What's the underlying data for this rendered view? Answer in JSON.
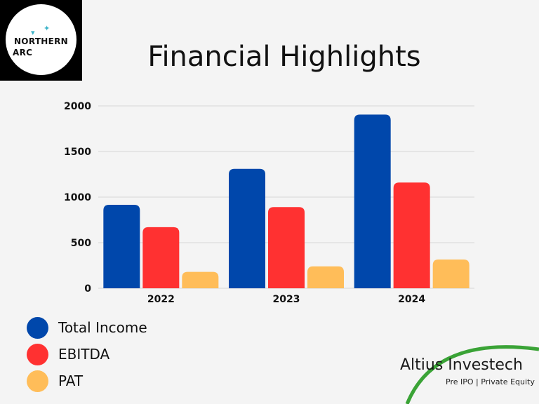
{
  "logo": {
    "line1": "NORTHERN",
    "line2": "ARC"
  },
  "title": "Financial Highlights",
  "brand": {
    "name": "Altius Investech",
    "tagline": "Pre IPO | Private Equity"
  },
  "colors": {
    "total_income": "#0047ab",
    "ebitda": "#ff3131",
    "pat": "#ffbd59",
    "brand_arc": "#3aa336"
  },
  "chart_data": {
    "type": "bar",
    "title": "Financial Highlights",
    "xlabel": "",
    "ylabel": "",
    "categories": [
      "2022",
      "2023",
      "2024"
    ],
    "series": [
      {
        "name": "Total Income",
        "color": "#0047ab",
        "values": [
          915,
          1310,
          1905
        ]
      },
      {
        "name": "EBITDA",
        "color": "#ff3131",
        "values": [
          670,
          890,
          1160
        ]
      },
      {
        "name": "PAT",
        "color": "#ffbd59",
        "values": [
          180,
          240,
          315
        ]
      }
    ],
    "yticks": [
      "0",
      "500",
      "1000",
      "1500",
      "2000"
    ],
    "ylim": [
      0,
      2000
    ],
    "grid": true,
    "legend_position": "bottom-left"
  }
}
